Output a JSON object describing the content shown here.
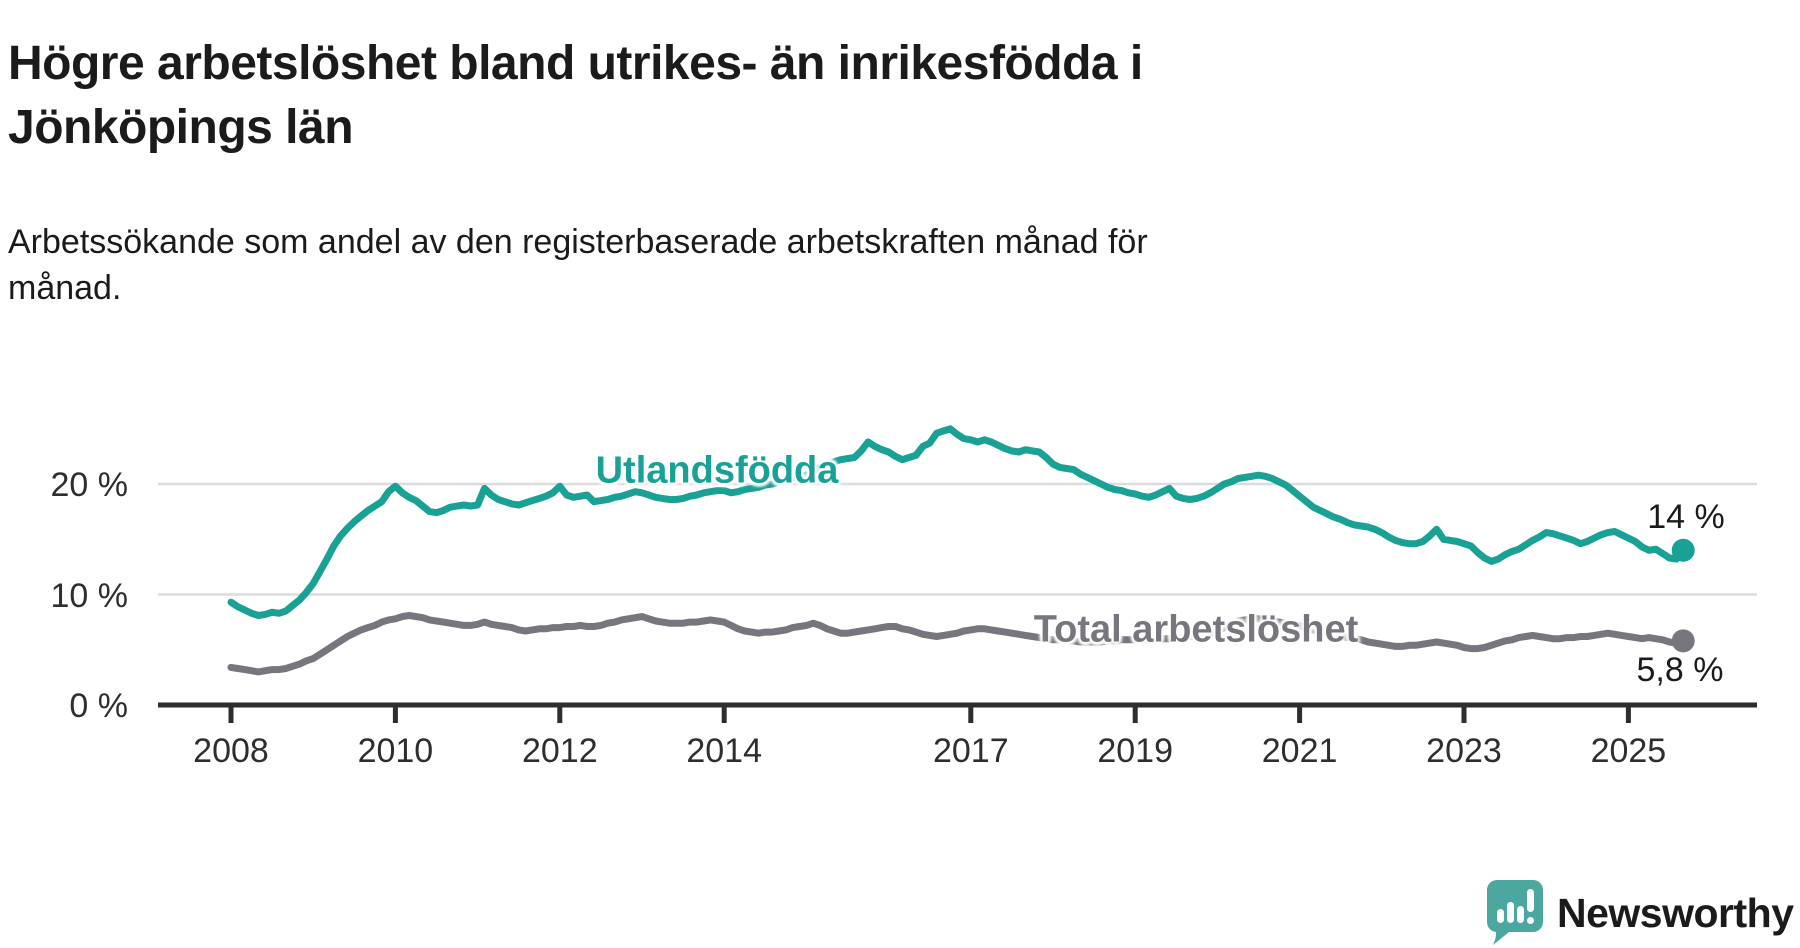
{
  "header": {
    "title": "Högre arbetslöshet bland utrikes- än inrikesfödda i\nJönköpings län",
    "subtitle": "Arbetssökande som andel av den registerbaserade arbetskraften månad för\nmånad."
  },
  "chart_data": {
    "type": "line",
    "unit": "%",
    "x_interval": "monthly",
    "x_start_year": 2008,
    "x_end_label": "2025-09",
    "ylim": [
      0,
      26
    ],
    "grid": "horizontal",
    "axis_color": "#2e2e2e",
    "grid_color": "#dcdcdc",
    "y_ticks": [
      {
        "value": 0,
        "label": "0 %"
      },
      {
        "value": 10,
        "label": "10 %"
      },
      {
        "value": 20,
        "label": "20 %"
      }
    ],
    "x_ticks": [
      {
        "value": 2008,
        "label": "2008"
      },
      {
        "value": 2010,
        "label": "2010"
      },
      {
        "value": 2012,
        "label": "2012"
      },
      {
        "value": 2014,
        "label": "2014"
      },
      {
        "value": 2017,
        "label": "2017"
      },
      {
        "value": 2019,
        "label": "2019"
      },
      {
        "value": 2021,
        "label": "2021"
      },
      {
        "value": 2023,
        "label": "2023"
      },
      {
        "value": 2025,
        "label": "2025"
      }
    ],
    "series": [
      {
        "name": "Utlandsfödda",
        "color": "#18a194",
        "end_label": "14 %",
        "end_value": 14.0,
        "values": [
          9.3,
          8.9,
          8.6,
          8.3,
          8.1,
          8.2,
          8.4,
          8.3,
          8.5,
          9.0,
          9.5,
          10.2,
          11.0,
          12.1,
          13.2,
          14.4,
          15.3,
          16.0,
          16.6,
          17.1,
          17.6,
          18.0,
          18.4,
          19.3,
          19.8,
          19.2,
          18.8,
          18.5,
          18.0,
          17.5,
          17.4,
          17.6,
          17.9,
          18.0,
          18.1,
          18.0,
          18.1,
          19.6,
          19.0,
          18.6,
          18.4,
          18.2,
          18.1,
          18.3,
          18.5,
          18.7,
          18.9,
          19.2,
          19.8,
          19.0,
          18.8,
          18.9,
          19.0,
          18.4,
          18.5,
          18.6,
          18.8,
          18.9,
          19.1,
          19.3,
          19.2,
          19.0,
          18.8,
          18.7,
          18.6,
          18.6,
          18.7,
          18.9,
          19.0,
          19.2,
          19.3,
          19.4,
          19.4,
          19.2,
          19.3,
          19.5,
          19.6,
          19.7,
          19.9,
          20.0,
          20.2,
          20.4,
          20.6,
          20.7,
          20.8,
          21.3,
          21.5,
          21.7,
          22.0,
          22.2,
          22.3,
          22.4,
          23.0,
          23.8,
          23.4,
          23.1,
          22.9,
          22.5,
          22.2,
          22.4,
          22.6,
          23.4,
          23.7,
          24.6,
          24.8,
          25.0,
          24.5,
          24.1,
          24.0,
          23.8,
          24.0,
          23.8,
          23.5,
          23.2,
          23.0,
          22.9,
          23.1,
          23.0,
          22.9,
          22.4,
          21.8,
          21.5,
          21.4,
          21.3,
          20.9,
          20.6,
          20.3,
          20.0,
          19.7,
          19.5,
          19.4,
          19.2,
          19.1,
          18.9,
          18.8,
          19.0,
          19.3,
          19.6,
          18.9,
          18.7,
          18.6,
          18.7,
          18.9,
          19.2,
          19.6,
          20.0,
          20.2,
          20.5,
          20.6,
          20.7,
          20.8,
          20.7,
          20.5,
          20.2,
          19.9,
          19.4,
          18.9,
          18.4,
          17.9,
          17.6,
          17.3,
          17.0,
          16.8,
          16.5,
          16.3,
          16.2,
          16.1,
          15.9,
          15.6,
          15.2,
          14.9,
          14.7,
          14.6,
          14.6,
          14.8,
          15.3,
          15.9,
          15.0,
          14.9,
          14.8,
          14.6,
          14.4,
          13.8,
          13.3,
          13.0,
          13.2,
          13.6,
          13.9,
          14.1,
          14.5,
          14.9,
          15.2,
          15.6,
          15.5,
          15.3,
          15.1,
          14.9,
          14.6,
          14.8,
          15.1,
          15.4,
          15.6,
          15.7,
          15.4,
          15.1,
          14.8,
          14.3,
          14.0,
          14.1,
          13.7,
          13.3,
          13.2,
          14.0
        ]
      },
      {
        "name": "Total arbetslöshet",
        "color": "#76767e",
        "end_label": "5,8 %",
        "end_value": 5.8,
        "values": [
          3.4,
          3.3,
          3.2,
          3.1,
          3.0,
          3.1,
          3.2,
          3.2,
          3.3,
          3.5,
          3.7,
          4.0,
          4.2,
          4.6,
          5.0,
          5.4,
          5.8,
          6.2,
          6.5,
          6.8,
          7.0,
          7.2,
          7.5,
          7.7,
          7.8,
          8.0,
          8.1,
          8.0,
          7.9,
          7.7,
          7.6,
          7.5,
          7.4,
          7.3,
          7.2,
          7.2,
          7.3,
          7.5,
          7.3,
          7.2,
          7.1,
          7.0,
          6.8,
          6.7,
          6.8,
          6.9,
          6.9,
          7.0,
          7.0,
          7.1,
          7.1,
          7.2,
          7.1,
          7.1,
          7.2,
          7.4,
          7.5,
          7.7,
          7.8,
          7.9,
          8.0,
          7.8,
          7.6,
          7.5,
          7.4,
          7.4,
          7.4,
          7.5,
          7.5,
          7.6,
          7.7,
          7.6,
          7.5,
          7.2,
          6.9,
          6.7,
          6.6,
          6.5,
          6.6,
          6.6,
          6.7,
          6.8,
          7.0,
          7.1,
          7.2,
          7.4,
          7.2,
          6.9,
          6.7,
          6.5,
          6.5,
          6.6,
          6.7,
          6.8,
          6.9,
          7.0,
          7.1,
          7.1,
          6.9,
          6.8,
          6.6,
          6.4,
          6.3,
          6.2,
          6.3,
          6.4,
          6.5,
          6.7,
          6.8,
          6.9,
          6.9,
          6.8,
          6.7,
          6.6,
          6.5,
          6.4,
          6.3,
          6.2,
          6.1,
          6.0,
          5.9,
          5.9,
          5.8,
          5.8,
          5.7,
          5.7,
          5.7,
          5.7,
          5.8,
          5.8,
          5.9,
          5.9,
          5.9,
          5.9,
          5.9,
          6.0,
          6.0,
          6.0,
          6.1,
          6.1,
          6.2,
          6.3,
          6.4,
          6.5,
          6.7,
          7.0,
          7.3,
          7.6,
          7.7,
          7.8,
          7.8,
          7.7,
          7.6,
          7.5,
          7.4,
          7.3,
          7.2,
          7.0,
          6.8,
          6.7,
          6.5,
          6.4,
          6.2,
          6.1,
          6.0,
          5.9,
          5.7,
          5.6,
          5.5,
          5.4,
          5.3,
          5.3,
          5.4,
          5.4,
          5.5,
          5.6,
          5.7,
          5.6,
          5.5,
          5.4,
          5.2,
          5.1,
          5.1,
          5.2,
          5.4,
          5.6,
          5.8,
          5.9,
          6.1,
          6.2,
          6.3,
          6.2,
          6.1,
          6.0,
          6.0,
          6.1,
          6.1,
          6.2,
          6.2,
          6.3,
          6.4,
          6.5,
          6.4,
          6.3,
          6.2,
          6.1,
          6.0,
          6.1,
          6.0,
          5.9,
          5.7,
          5.6,
          5.8
        ]
      }
    ]
  },
  "footer": {
    "brand": "Newsworthy",
    "brand_color": "#4BA79F",
    "logo_icon": "newsworthy-speech-bubble-bar-chart-icon"
  }
}
